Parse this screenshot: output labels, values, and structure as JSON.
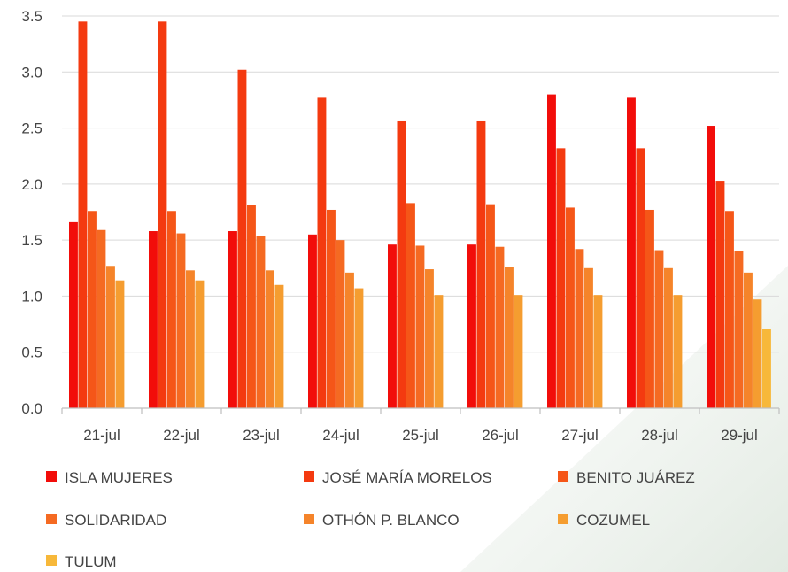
{
  "chart_data": {
    "type": "bar",
    "title": "",
    "xlabel": "",
    "ylabel": "",
    "ylim": [
      0,
      3.5
    ],
    "yticks": [
      "0.0",
      "0.5",
      "1.0",
      "1.5",
      "2.0",
      "2.5",
      "3.0",
      "3.5"
    ],
    "grid": true,
    "legend_position": "bottom",
    "categories": [
      "21-jul",
      "22-jul",
      "23-jul",
      "24-jul",
      "25-jul",
      "26-jul",
      "27-jul",
      "28-jul",
      "29-jul"
    ],
    "series": [
      {
        "name": "ISLA MUJERES",
        "color": "#f20d0a",
        "values": [
          1.66,
          1.58,
          1.58,
          1.55,
          1.46,
          1.46,
          2.8,
          2.77,
          2.52
        ]
      },
      {
        "name": "JOSÉ MARÍA MORELOS",
        "color": "#f43a10",
        "values": [
          3.45,
          3.45,
          3.02,
          2.77,
          2.56,
          2.56,
          2.32,
          2.32,
          2.03
        ]
      },
      {
        "name": "BENITO JUÁREZ",
        "color": "#f55618",
        "values": [
          1.76,
          1.76,
          1.81,
          1.77,
          1.83,
          1.82,
          1.79,
          1.77,
          1.76
        ]
      },
      {
        "name": "SOLIDARIDAD",
        "color": "#f56a22",
        "values": [
          1.59,
          1.56,
          1.54,
          1.5,
          1.45,
          1.44,
          1.42,
          1.41,
          1.4
        ]
      },
      {
        "name": "OTHÓN P. BLANCO",
        "color": "#f5842a",
        "values": [
          1.27,
          1.23,
          1.23,
          1.21,
          1.24,
          1.26,
          1.25,
          1.25,
          1.21
        ]
      },
      {
        "name": "COZUMEL",
        "color": "#f59d30",
        "values": [
          1.14,
          1.14,
          1.1,
          1.07,
          1.01,
          1.01,
          1.01,
          1.01,
          0.97
        ]
      },
      {
        "name": "TULUM",
        "color": "#f7b83a",
        "values": [
          null,
          null,
          null,
          null,
          null,
          null,
          null,
          null,
          0.71
        ]
      }
    ]
  }
}
